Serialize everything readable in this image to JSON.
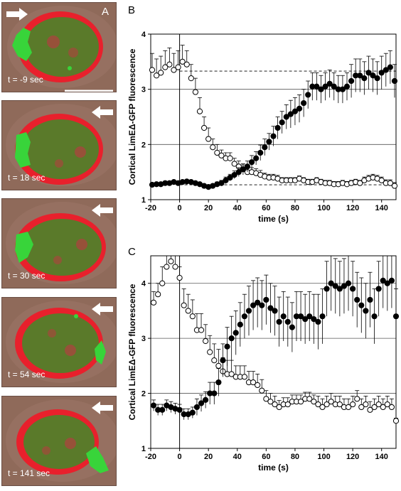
{
  "panel_a": {
    "letter": "A",
    "frames": [
      {
        "label": "t = -9 sec",
        "arrow": "right"
      },
      {
        "label": "t = 18 sec",
        "arrow": "left"
      },
      {
        "label": "t = 30 sec",
        "arrow": "left"
      },
      {
        "label": "t = 54 sec",
        "arrow": "left"
      },
      {
        "label": "t = 141 sec",
        "arrow": "left"
      }
    ]
  },
  "colors": {
    "cortex": "#e8202c",
    "cytoplasm": "#5a7a2a",
    "lime": "#38d43a",
    "background": "#8f6a5a"
  },
  "chart_data": [
    {
      "panel": "B",
      "type": "scatter",
      "xlabel": "time (s)",
      "ylabel": "Cortical LimEΔ-GFP fluorescence",
      "xlim": [
        -20,
        150
      ],
      "ylim": [
        1,
        4
      ],
      "xticks": [
        "-20",
        "0",
        "20",
        "40",
        "60",
        "80",
        "100",
        "120",
        "140"
      ],
      "yticks": [
        "1",
        "2",
        "3",
        "4"
      ],
      "grid": "horizontal",
      "reference_lines": [
        {
          "y": 3.33,
          "x": [
            0,
            150
          ]
        },
        {
          "y": 1.27,
          "x": [
            0,
            150
          ]
        }
      ],
      "series": [
        {
          "marker": "open",
          "x": [
            -19,
            -16,
            -13,
            -10,
            -7,
            -4,
            -1,
            2,
            5,
            8,
            11,
            14,
            17,
            20,
            23,
            26,
            29,
            32,
            35,
            38,
            41,
            44,
            47,
            50,
            53,
            56,
            59,
            62,
            65,
            68,
            71,
            74,
            77,
            80,
            83,
            86,
            89,
            92,
            95,
            98,
            101,
            104,
            107,
            110,
            113,
            116,
            119,
            122,
            125,
            128,
            131,
            134,
            137,
            140,
            143,
            146,
            149
          ],
          "y": [
            3.35,
            3.25,
            3.3,
            3.4,
            3.45,
            3.35,
            3.4,
            3.5,
            3.45,
            3.2,
            2.95,
            2.6,
            2.3,
            2.1,
            1.95,
            1.85,
            1.8,
            1.75,
            1.75,
            1.65,
            1.6,
            1.55,
            1.5,
            1.5,
            1.48,
            1.45,
            1.42,
            1.4,
            1.4,
            1.38,
            1.35,
            1.35,
            1.35,
            1.35,
            1.38,
            1.35,
            1.32,
            1.32,
            1.35,
            1.32,
            1.3,
            1.3,
            1.28,
            1.28,
            1.3,
            1.28,
            1.3,
            1.32,
            1.3,
            1.35,
            1.38,
            1.4,
            1.38,
            1.35,
            1.3,
            1.3,
            1.25
          ],
          "err": [
            0.3,
            0.3,
            0.3,
            0.3,
            0.3,
            0.3,
            0.3,
            0.3,
            0.25,
            0.25,
            0.25,
            0.25,
            0.2,
            0.2,
            0.15,
            0.15,
            0.1,
            0.1,
            0.1,
            0.1,
            0.1,
            0.08,
            0.08,
            0.08,
            0.08,
            0.08,
            0.06,
            0.06,
            0.06,
            0.06,
            0.05,
            0.05,
            0.05,
            0.05,
            0.05,
            0.05,
            0.05,
            0.05,
            0.05,
            0.05,
            0.05,
            0.05,
            0.05,
            0.05,
            0.05,
            0.05,
            0.05,
            0.05,
            0.05,
            0.06,
            0.06,
            0.06,
            0.06,
            0.06,
            0.06,
            0.06,
            0.06
          ]
        },
        {
          "marker": "filled",
          "x": [
            -19,
            -16,
            -13,
            -10,
            -7,
            -4,
            -1,
            2,
            5,
            8,
            11,
            14,
            17,
            20,
            23,
            26,
            29,
            32,
            35,
            38,
            41,
            44,
            47,
            50,
            53,
            56,
            59,
            62,
            65,
            68,
            71,
            74,
            77,
            80,
            83,
            86,
            89,
            92,
            95,
            98,
            101,
            104,
            107,
            110,
            113,
            116,
            119,
            122,
            125,
            128,
            131,
            134,
            137,
            140,
            143,
            146,
            149
          ],
          "y": [
            1.27,
            1.28,
            1.28,
            1.3,
            1.3,
            1.32,
            1.3,
            1.32,
            1.33,
            1.32,
            1.3,
            1.28,
            1.25,
            1.23,
            1.25,
            1.28,
            1.3,
            1.35,
            1.4,
            1.45,
            1.5,
            1.55,
            1.6,
            1.68,
            1.75,
            1.85,
            1.95,
            2.05,
            2.15,
            2.3,
            2.4,
            2.5,
            2.55,
            2.6,
            2.65,
            2.75,
            2.9,
            3.05,
            3.05,
            3.0,
            3.05,
            3.1,
            3.05,
            3.0,
            3.0,
            3.05,
            3.15,
            3.25,
            3.25,
            3.2,
            3.3,
            3.25,
            3.2,
            3.3,
            3.35,
            3.4,
            3.15
          ],
          "err": [
            0.03,
            0.03,
            0.03,
            0.03,
            0.03,
            0.03,
            0.03,
            0.03,
            0.03,
            0.03,
            0.03,
            0.03,
            0.03,
            0.03,
            0.03,
            0.04,
            0.05,
            0.06,
            0.06,
            0.07,
            0.08,
            0.1,
            0.1,
            0.12,
            0.12,
            0.14,
            0.15,
            0.15,
            0.18,
            0.2,
            0.2,
            0.22,
            0.25,
            0.25,
            0.25,
            0.25,
            0.25,
            0.25,
            0.25,
            0.25,
            0.25,
            0.25,
            0.25,
            0.25,
            0.25,
            0.25,
            0.3,
            0.3,
            0.3,
            0.3,
            0.3,
            0.3,
            0.3,
            0.3,
            0.3,
            0.3,
            0.3
          ]
        }
      ]
    },
    {
      "panel": "C",
      "type": "scatter",
      "xlabel": "time (s)",
      "ylabel": "Cortical LimEΔ-GFP fluorescence",
      "xlim": [
        -20,
        150
      ],
      "ylim": [
        1,
        4.5
      ],
      "xticks": [
        "-20",
        "0",
        "20",
        "40",
        "60",
        "80",
        "100",
        "120",
        "140"
      ],
      "yticks": [
        "1",
        "2",
        "3",
        "4"
      ],
      "grid": "horizontal",
      "reference_lines": [],
      "series": [
        {
          "marker": "open",
          "x": [
            -18,
            -15,
            -12,
            -9,
            -6,
            -3,
            0,
            3,
            6,
            9,
            12,
            15,
            18,
            21,
            24,
            27,
            30,
            33,
            36,
            39,
            42,
            45,
            48,
            51,
            54,
            57,
            60,
            63,
            66,
            69,
            72,
            75,
            78,
            81,
            84,
            87,
            90,
            93,
            96,
            99,
            102,
            105,
            108,
            111,
            114,
            117,
            120,
            123,
            126,
            129,
            132,
            135,
            138,
            141,
            144,
            147,
            150
          ],
          "y": [
            3.65,
            3.8,
            4.0,
            4.3,
            4.4,
            4.3,
            4.1,
            3.6,
            3.5,
            3.4,
            3.15,
            3.15,
            2.95,
            2.75,
            2.6,
            2.5,
            2.4,
            2.35,
            2.35,
            2.3,
            2.3,
            2.3,
            2.2,
            2.2,
            2.15,
            2.05,
            1.9,
            1.85,
            1.8,
            1.75,
            1.8,
            1.8,
            1.85,
            1.85,
            1.85,
            1.9,
            1.9,
            1.85,
            1.8,
            1.75,
            1.8,
            1.85,
            1.8,
            1.8,
            1.75,
            1.75,
            1.8,
            1.9,
            1.75,
            1.8,
            1.7,
            1.75,
            1.8,
            1.75,
            1.8,
            1.75,
            1.5
          ],
          "err": [
            0.2,
            0.2,
            0.3,
            0.3,
            0.2,
            0.2,
            0.2,
            0.3,
            0.3,
            0.3,
            0.3,
            0.3,
            0.3,
            0.3,
            0.3,
            0.3,
            0.25,
            0.25,
            0.25,
            0.2,
            0.2,
            0.2,
            0.2,
            0.2,
            0.2,
            0.2,
            0.15,
            0.15,
            0.15,
            0.12,
            0.12,
            0.12,
            0.12,
            0.12,
            0.12,
            0.12,
            0.12,
            0.12,
            0.15,
            0.15,
            0.15,
            0.15,
            0.15,
            0.15,
            0.15,
            0.15,
            0.15,
            0.15,
            0.15,
            0.15,
            0.15,
            0.15,
            0.15,
            0.15,
            0.15,
            0.15,
            0.05
          ]
        },
        {
          "marker": "filled",
          "x": [
            -18,
            -15,
            -12,
            -9,
            -6,
            -3,
            0,
            3,
            6,
            9,
            12,
            15,
            18,
            21,
            24,
            27,
            30,
            33,
            36,
            39,
            42,
            45,
            48,
            51,
            54,
            57,
            60,
            63,
            66,
            69,
            72,
            75,
            78,
            81,
            84,
            87,
            90,
            93,
            96,
            99,
            102,
            105,
            108,
            111,
            114,
            117,
            120,
            123,
            126,
            129,
            132,
            135,
            138,
            141,
            144,
            147,
            150
          ],
          "y": [
            1.78,
            1.7,
            1.7,
            1.78,
            1.75,
            1.72,
            1.7,
            1.62,
            1.62,
            1.65,
            1.75,
            1.82,
            1.88,
            2.0,
            2.0,
            2.2,
            2.6,
            2.85,
            3.0,
            3.1,
            3.25,
            3.4,
            3.5,
            3.6,
            3.65,
            3.6,
            3.7,
            3.55,
            3.5,
            3.3,
            3.4,
            3.3,
            3.2,
            3.4,
            3.4,
            3.35,
            3.4,
            3.35,
            3.3,
            3.4,
            3.9,
            4.0,
            3.95,
            3.9,
            3.95,
            4.0,
            3.9,
            3.7,
            3.6,
            3.5,
            3.7,
            3.4,
            3.9,
            4.05,
            4.0,
            4.05,
            3.4
          ],
          "err": [
            0.1,
            0.1,
            0.1,
            0.1,
            0.1,
            0.1,
            0.1,
            0.1,
            0.1,
            0.1,
            0.15,
            0.15,
            0.15,
            0.2,
            0.2,
            0.25,
            0.3,
            0.35,
            0.4,
            0.4,
            0.4,
            0.4,
            0.45,
            0.45,
            0.45,
            0.45,
            0.45,
            0.45,
            0.45,
            0.45,
            0.45,
            0.45,
            0.45,
            0.45,
            0.45,
            0.45,
            0.45,
            0.45,
            0.5,
            0.5,
            0.5,
            0.5,
            0.5,
            0.5,
            0.5,
            0.5,
            0.5,
            0.5,
            0.5,
            0.5,
            0.5,
            0.5,
            0.5,
            0.5,
            0.5,
            0.5,
            0.5
          ]
        }
      ]
    }
  ]
}
